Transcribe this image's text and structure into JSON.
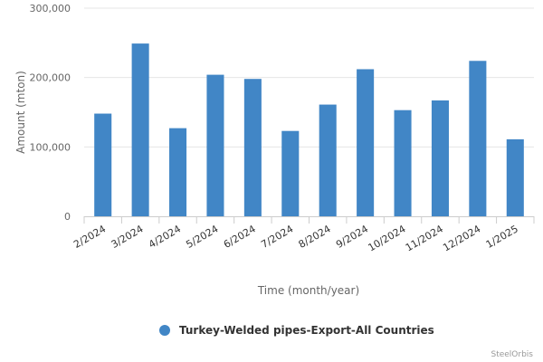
{
  "chart_data": {
    "type": "bar",
    "categories": [
      "2/2024",
      "3/2024",
      "4/2024",
      "5/2024",
      "6/2024",
      "7/2024",
      "8/2024",
      "9/2024",
      "10/2024",
      "11/2024",
      "12/2024",
      "1/2025"
    ],
    "series": [
      {
        "name": "Turkey-Welded pipes-Export-All Countries",
        "color": "#4186c6",
        "values": [
          148000,
          249000,
          127000,
          204000,
          198000,
          123000,
          161000,
          212000,
          153000,
          167000,
          224000,
          111000
        ]
      }
    ],
    "xlabel": "Time (month/year)",
    "ylabel": "Amount (mton)",
    "ylim": [
      0,
      300000
    ],
    "yticks": [
      0,
      100000,
      200000,
      300000
    ],
    "ytick_labels": [
      "0",
      "100,000",
      "200,000",
      "300,000"
    ],
    "grid": true,
    "legend_position": "bottom-center",
    "credit": "SteelOrbis"
  }
}
